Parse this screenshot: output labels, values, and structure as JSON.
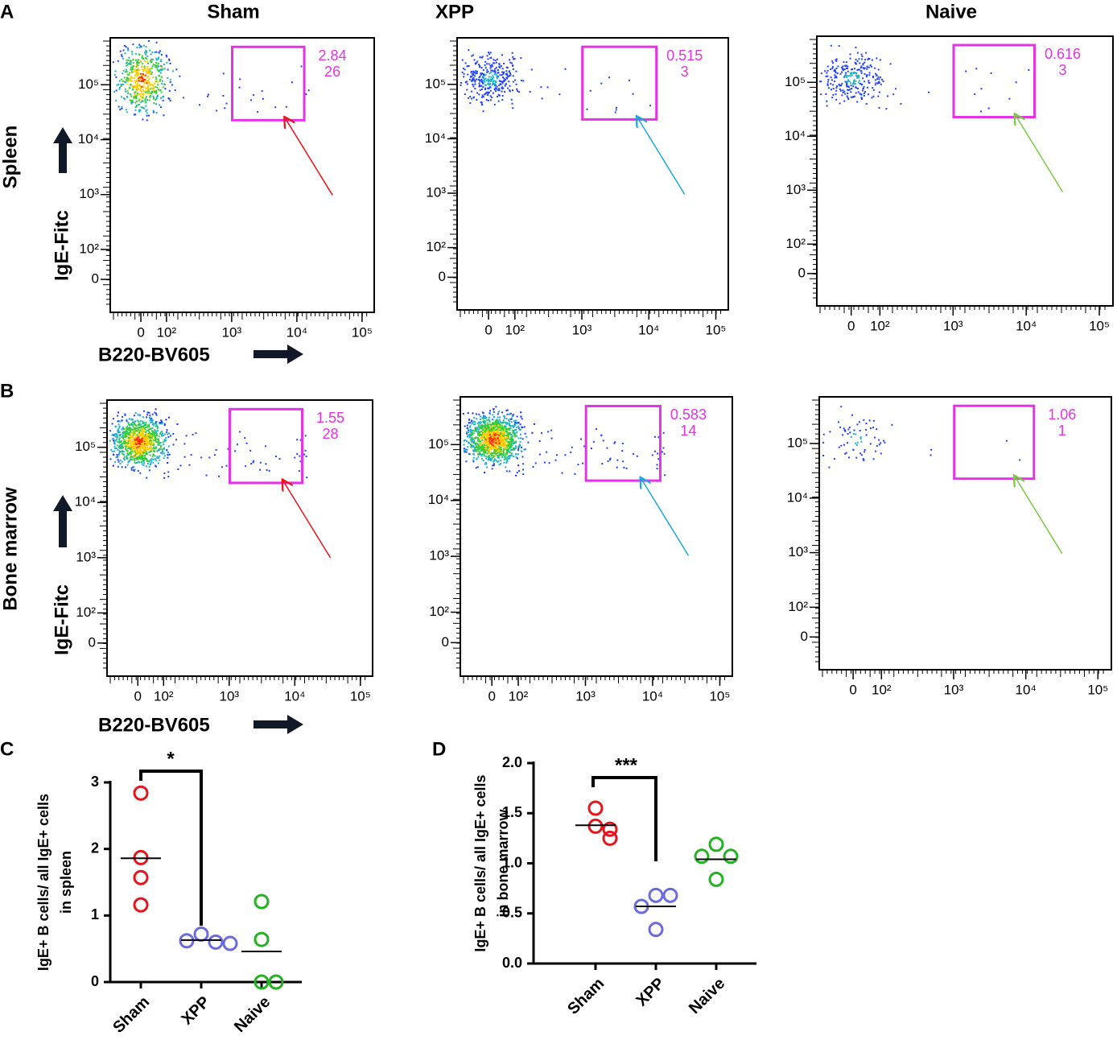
{
  "panel_letters": [
    "A",
    "B"
  ],
  "flow": {
    "columns": [
      "Sham",
      "XPP",
      "Naive"
    ],
    "axes": {
      "x_title": "B220-BV605",
      "y_title": "IgE-Fitc",
      "x_ticks": [
        0,
        {
          "value": 100,
          "label": "10²"
        },
        {
          "value": 1000,
          "label": "10³"
        },
        {
          "value": 10000,
          "label": "10⁴"
        },
        {
          "value": 100000,
          "label": "10⁵"
        }
      ],
      "y_ticks": [
        {
          "value": 100000,
          "label": "10⁵"
        },
        {
          "value": 10000,
          "label": "10⁴"
        },
        {
          "value": 1000,
          "label": "10³"
        },
        {
          "value": 100,
          "label": "10²"
        },
        0
      ]
    },
    "rows": [
      {
        "name": "Spleen",
        "gates": [
          {
            "percent": 2.84,
            "count": 26
          },
          {
            "percent": 0.515,
            "count": 3
          },
          {
            "percent": 0.616,
            "count": 3
          }
        ]
      },
      {
        "name": "Bone marrow",
        "gates": [
          {
            "percent": 1.55,
            "count": 28
          },
          {
            "percent": 0.583,
            "count": 14
          },
          {
            "percent": 1.06,
            "count": 1
          }
        ]
      }
    ]
  },
  "chart_data": [
    {
      "type": "dot",
      "panel": "C",
      "ylabel": [
        "IgE+ B cells/ all IgE+ cells",
        "in spleen"
      ],
      "categories": [
        "Sham",
        "XPP",
        "Naive"
      ],
      "colors": [
        "#e8141b",
        "#6b6be0",
        "#22b322"
      ],
      "values": [
        [
          2.84,
          1.87,
          1.57,
          1.16
        ],
        [
          0.72,
          0.6,
          0.62,
          0.58
        ],
        [
          1.21,
          0.64,
          0,
          0
        ]
      ],
      "means": [
        1.86,
        0.63,
        0.46
      ],
      "ylim": [
        0,
        3
      ],
      "yticks": [
        0,
        1,
        2,
        3
      ],
      "annotation": "*"
    },
    {
      "type": "dot",
      "panel": "D",
      "ylabel": [
        "IgE+ B cells/ all IgE+ cells",
        "in bone marrow"
      ],
      "categories": [
        "Sham",
        "XPP",
        "Naive"
      ],
      "colors": [
        "#e8141b",
        "#6b6be0",
        "#22b322"
      ],
      "values": [
        [
          1.55,
          1.37,
          1.34,
          1.25
        ],
        [
          0.68,
          0.68,
          0.57,
          0.34
        ],
        [
          1.19,
          1.07,
          1.07,
          0.84
        ]
      ],
      "means": [
        1.38,
        0.57,
        1.04
      ],
      "ylim": [
        0,
        2
      ],
      "yticks": [
        {
          "value": 0,
          "label": "0.0"
        },
        {
          "value": 0.5,
          "label": "0.5"
        },
        {
          "value": 1,
          "label": "1.0"
        },
        {
          "value": 1.5,
          "label": "1.5"
        },
        {
          "value": 2,
          "label": "2.0"
        }
      ],
      "annotation": "***"
    }
  ]
}
